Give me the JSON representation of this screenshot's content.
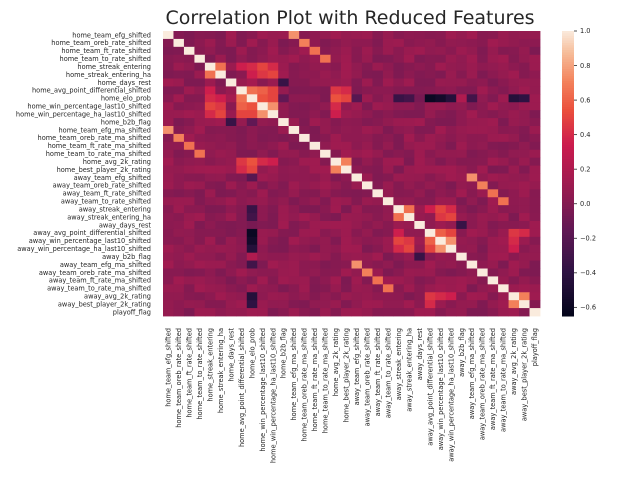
{
  "chart_data": {
    "type": "heatmap",
    "title": "Correlation Plot with Reduced Features",
    "xlabel": "",
    "ylabel": "",
    "labels": [
      "home_team_efg_shifted",
      "home_team_oreb_rate_shifted",
      "home_team_ft_rate_shifted",
      "home_team_to_rate_shifted",
      "home_streak_entering",
      "home_streak_entering_ha",
      "home_days_rest",
      "home_avg_point_differential_shifted",
      "home_elo_prob",
      "home_win_percentage_last10_shifted",
      "home_win_percentage_ha_last10_shifted",
      "home_b2b_flag",
      "home_team_efg_ma_shifted",
      "home_team_oreb_rate_ma_shifted",
      "home_team_ft_rate_ma_shifted",
      "home_team_to_rate_ma_shifted",
      "home_avg_2k_rating",
      "home_best_player_2k_rating",
      "away_team_efg_shifted",
      "away_team_oreb_rate_shifted",
      "away_team_ft_rate_shifted",
      "away_team_to_rate_shifted",
      "away_streak_entering",
      "away_streak_entering_ha",
      "away_days_rest",
      "away_avg_point_differential_shifted",
      "away_win_percentage_last10_shifted",
      "away_win_percentage_ha_last10_shifted",
      "away_b2b_flag",
      "away_team_efg_ma_shifted",
      "away_team_oreb_rate_ma_shifted",
      "away_team_ft_rate_ma_shifted",
      "away_team_to_rate_ma_shifted",
      "away_avg_2k_rating",
      "away_best_player_2k_rating",
      "playoff_flag"
    ],
    "vmin": -0.65,
    "vmax": 1.0,
    "colorbar_ticks": [
      1.0,
      0.8,
      0.6,
      0.4,
      0.2,
      0.0,
      -0.2,
      -0.4,
      -0.6
    ],
    "colorbar_tick_labels": [
      "1.0",
      "0.8",
      "0.6",
      "0.4",
      "0.2",
      "0.0",
      "−0.2",
      "−0.4",
      "−0.6"
    ],
    "colormap": "rocket",
    "matrix_note": "symmetric; values estimated from colors",
    "corr_groups": {
      "home": [
        0,
        17
      ],
      "away": [
        18,
        34
      ]
    },
    "pairs": [
      {
        "i": 0,
        "j": 12,
        "v": 0.75
      },
      {
        "i": 1,
        "j": 13,
        "v": 0.7
      },
      {
        "i": 2,
        "j": 14,
        "v": 0.65
      },
      {
        "i": 3,
        "j": 15,
        "v": 0.65
      },
      {
        "i": 4,
        "j": 5,
        "v": 0.65
      },
      {
        "i": 4,
        "j": 7,
        "v": 0.35
      },
      {
        "i": 4,
        "j": 8,
        "v": 0.4
      },
      {
        "i": 4,
        "j": 9,
        "v": 0.5
      },
      {
        "i": 4,
        "j": 10,
        "v": 0.4
      },
      {
        "i": 5,
        "j": 8,
        "v": 0.35
      },
      {
        "i": 5,
        "j": 9,
        "v": 0.45
      },
      {
        "i": 5,
        "j": 10,
        "v": 0.5
      },
      {
        "i": 7,
        "j": 8,
        "v": 0.65
      },
      {
        "i": 7,
        "j": 9,
        "v": 0.6
      },
      {
        "i": 7,
        "j": 10,
        "v": 0.5
      },
      {
        "i": 7,
        "j": 16,
        "v": 0.45
      },
      {
        "i": 7,
        "j": 17,
        "v": 0.4
      },
      {
        "i": 8,
        "j": 9,
        "v": 0.55
      },
      {
        "i": 8,
        "j": 10,
        "v": 0.5
      },
      {
        "i": 8,
        "j": 16,
        "v": 0.55
      },
      {
        "i": 8,
        "j": 17,
        "v": 0.5
      },
      {
        "i": 9,
        "j": 10,
        "v": 0.75
      },
      {
        "i": 9,
        "j": 16,
        "v": 0.4
      },
      {
        "i": 10,
        "j": 16,
        "v": 0.35
      },
      {
        "i": 16,
        "j": 17,
        "v": 0.7
      },
      {
        "i": 18,
        "j": 29,
        "v": 0.75
      },
      {
        "i": 19,
        "j": 30,
        "v": 0.7
      },
      {
        "i": 20,
        "j": 31,
        "v": 0.65
      },
      {
        "i": 21,
        "j": 32,
        "v": 0.65
      },
      {
        "i": 22,
        "j": 23,
        "v": 0.65
      },
      {
        "i": 22,
        "j": 25,
        "v": 0.35
      },
      {
        "i": 22,
        "j": 26,
        "v": 0.5
      },
      {
        "i": 22,
        "j": 27,
        "v": 0.4
      },
      {
        "i": 23,
        "j": 26,
        "v": 0.45
      },
      {
        "i": 23,
        "j": 27,
        "v": 0.5
      },
      {
        "i": 25,
        "j": 26,
        "v": 0.6
      },
      {
        "i": 25,
        "j": 27,
        "v": 0.5
      },
      {
        "i": 25,
        "j": 33,
        "v": 0.45
      },
      {
        "i": 25,
        "j": 34,
        "v": 0.4
      },
      {
        "i": 26,
        "j": 27,
        "v": 0.75
      },
      {
        "i": 26,
        "j": 33,
        "v": 0.4
      },
      {
        "i": 27,
        "j": 33,
        "v": 0.35
      },
      {
        "i": 33,
        "j": 34,
        "v": 0.7
      },
      {
        "i": 8,
        "j": 25,
        "v": -0.6
      },
      {
        "i": 8,
        "j": 26,
        "v": -0.55
      },
      {
        "i": 8,
        "j": 27,
        "v": -0.45
      },
      {
        "i": 8,
        "j": 22,
        "v": -0.35
      },
      {
        "i": 8,
        "j": 23,
        "v": -0.3
      },
      {
        "i": 8,
        "j": 33,
        "v": -0.45
      },
      {
        "i": 8,
        "j": 34,
        "v": -0.4
      },
      {
        "i": 8,
        "j": 18,
        "v": -0.2
      },
      {
        "i": 8,
        "j": 29,
        "v": -0.3
      },
      {
        "i": 6,
        "j": 8,
        "v": 0.15
      },
      {
        "i": 11,
        "j": 6,
        "v": -0.35
      },
      {
        "i": 24,
        "j": 28,
        "v": -0.35
      },
      {
        "i": 11,
        "j": 8,
        "v": -0.15
      },
      {
        "i": 28,
        "j": 8,
        "v": 0.2
      },
      {
        "i": 24,
        "j": 8,
        "v": -0.05
      }
    ],
    "default_value": 0.05
  }
}
